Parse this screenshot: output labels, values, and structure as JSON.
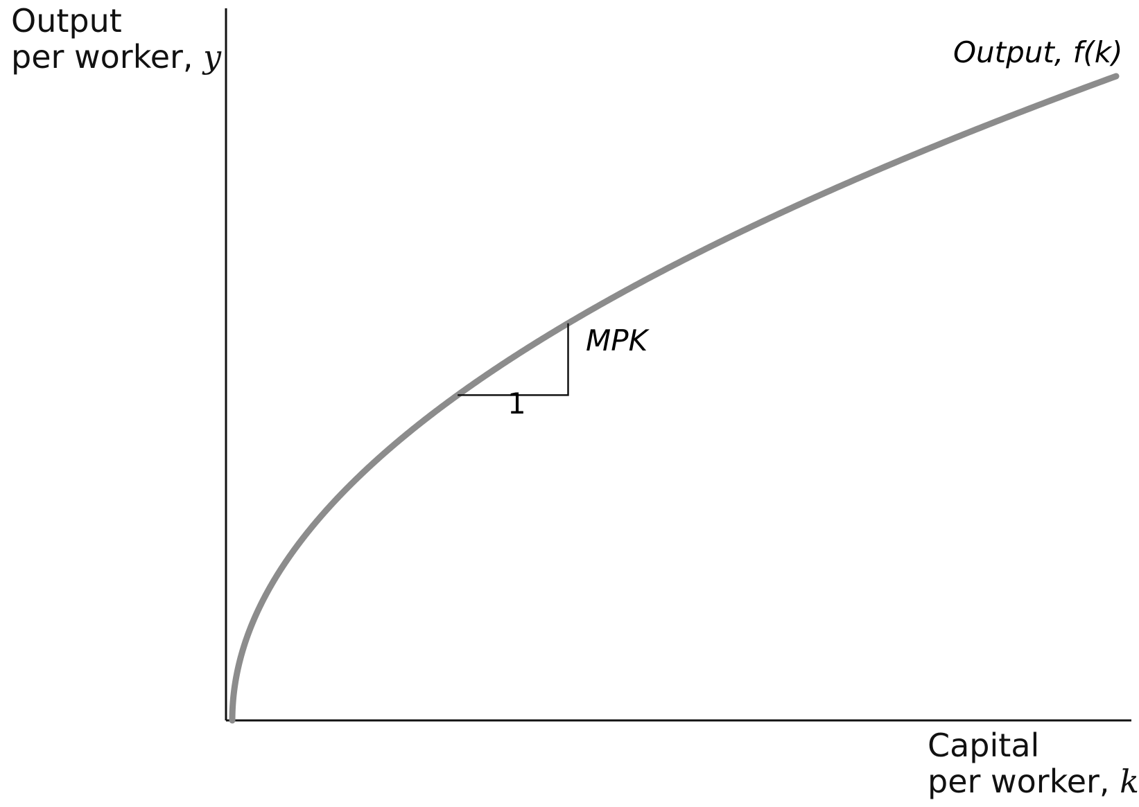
{
  "chart_data": {
    "type": "line",
    "title": "",
    "ylabel": {
      "line1": "Output",
      "line2_text": "per worker, ",
      "line2_var": "y"
    },
    "xlabel": {
      "line1": "Capital",
      "line2_text": "per worker, ",
      "line2_var": "k"
    },
    "series": [
      {
        "name": "Output, f(k)",
        "function": "power",
        "exponent": 0.5,
        "color": "#8c8c8c"
      }
    ],
    "xlim": [
      0,
      100
    ],
    "ylim": [
      0,
      100
    ],
    "grid": false,
    "annotations": {
      "curve_label": "Output, f(k)",
      "slope_triangle": {
        "x_start": 25.5,
        "x_end": 38,
        "run_label": "1",
        "rise_label": "MPK"
      }
    },
    "axis_color": "#111111"
  }
}
